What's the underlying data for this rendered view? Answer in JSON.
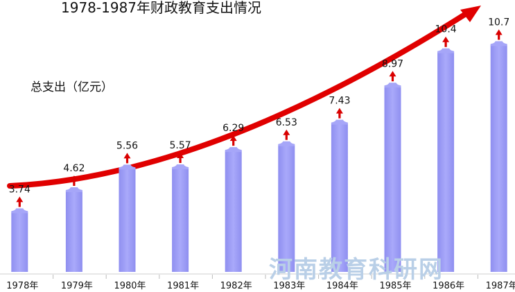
{
  "chart_data": {
    "type": "bar",
    "title": "1978-1987年财政教育支出情况",
    "ylabel": "总支出（亿元）",
    "xlabel": "",
    "categories": [
      "1978年",
      "1979年",
      "1980年",
      "1981年",
      "1982年",
      "1983年",
      "1984年",
      "1985年",
      "1986年",
      "1987年"
    ],
    "values": [
      3.74,
      4.62,
      5.56,
      5.57,
      6.29,
      6.53,
      7.43,
      8.97,
      10.4,
      10.7
    ],
    "value_labels": [
      "3.74",
      "4.62",
      "5.56",
      "5.57",
      "6.29",
      "6.53",
      "7.43",
      "8.97",
      "10.4",
      "10.7"
    ],
    "ylim": [
      0,
      11.2
    ],
    "grid": false,
    "annotations": {
      "trend_arrow": "increasing trend arrow spanning all years",
      "bar_arrows": "small up arrow above each bar"
    },
    "colors": {
      "bar": "#9999f5",
      "bar_highlight": "#b3b3fa",
      "arrow": "#d90000",
      "trend_arrow": "#e00000",
      "text": "#111111"
    }
  },
  "watermark": {
    "text": "河南教育科研网",
    "color": "#b9cfe7"
  }
}
